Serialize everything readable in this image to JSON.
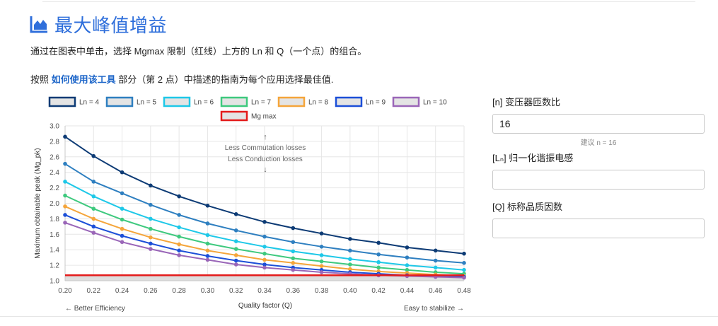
{
  "header": {
    "title": "最大峰值增益",
    "icon": "area-chart-icon",
    "accent_color": "#2f6fdb"
  },
  "description": {
    "line1": "通过在图表中单击，选择 Mgmax 限制（红线）上方的 Ln 和 Q（一个点）的组合。",
    "line2_pre": "按照",
    "line2_link": "如何使用该工具",
    "line2_post": "部分（第 2 点）中描述的指南为每个应用选择最佳值."
  },
  "form": {
    "n_label": "[n] 变压器匝数比",
    "n_value": "16",
    "n_hint": "建议 n = 16",
    "ln_label": "[Lₙ] 归一化谐振电感",
    "ln_value": "",
    "q_label": "[Q] 标称品质因数",
    "q_value": ""
  },
  "chart_data": {
    "type": "line",
    "x": [
      0.2,
      0.22,
      0.24,
      0.26,
      0.28,
      0.3,
      0.32,
      0.34,
      0.36,
      0.38,
      0.4,
      0.42,
      0.44,
      0.46,
      0.48
    ],
    "x_tick_labels": [
      "0.20",
      "0.22",
      "0.24",
      "0.26",
      "0.28",
      "0.30",
      "0.32",
      "0.34",
      "0.36",
      "0.38",
      "0.40",
      "0.42",
      "0.44",
      "0.46",
      "0.48"
    ],
    "y_tick_labels": [
      "1.0",
      "1.2",
      "1.4",
      "1.6",
      "1.8",
      "2.0",
      "2.2",
      "2.4",
      "2.6",
      "2.8",
      "3.0"
    ],
    "xlim": [
      0.2,
      0.48
    ],
    "ylim": [
      1.0,
      3.0
    ],
    "xlabel": "Quality factor (Q)",
    "ylabel": "Maximum obtainable peak (Mg_pk)",
    "x_left_note": "← Better Efficiency",
    "x_right_note": "Easy to stabilize →",
    "annotation_arrow_up": "↑",
    "annotation_line1": "Less Commutation losses",
    "annotation_line2": "Less Conduction losses",
    "annotation_arrow_down": "↓",
    "grid": true,
    "legend_position": "top",
    "series": [
      {
        "name": "Ln = 4",
        "color": "#0d3b75",
        "values": [
          2.86,
          2.61,
          2.4,
          2.23,
          2.09,
          1.97,
          1.86,
          1.76,
          1.68,
          1.61,
          1.54,
          1.49,
          1.43,
          1.39,
          1.35
        ]
      },
      {
        "name": "Ln = 5",
        "color": "#2e7fc0",
        "values": [
          2.51,
          2.28,
          2.13,
          1.98,
          1.85,
          1.74,
          1.65,
          1.57,
          1.5,
          1.44,
          1.39,
          1.34,
          1.3,
          1.26,
          1.23
        ]
      },
      {
        "name": "Ln = 6",
        "color": "#1ec8e8",
        "values": [
          2.28,
          2.09,
          1.93,
          1.8,
          1.69,
          1.59,
          1.51,
          1.44,
          1.38,
          1.33,
          1.28,
          1.24,
          1.2,
          1.17,
          1.14
        ]
      },
      {
        "name": "Ln = 7",
        "color": "#3ec97e",
        "values": [
          2.1,
          1.93,
          1.79,
          1.67,
          1.57,
          1.48,
          1.41,
          1.35,
          1.29,
          1.25,
          1.21,
          1.17,
          1.14,
          1.11,
          1.09
        ]
      },
      {
        "name": "Ln = 8",
        "color": "#f5a53a",
        "values": [
          1.96,
          1.8,
          1.67,
          1.56,
          1.47,
          1.39,
          1.33,
          1.27,
          1.23,
          1.19,
          1.15,
          1.12,
          1.1,
          1.08,
          1.06
        ]
      },
      {
        "name": "Ln = 9",
        "color": "#1c4fd8",
        "values": [
          1.85,
          1.7,
          1.58,
          1.48,
          1.39,
          1.32,
          1.26,
          1.21,
          1.17,
          1.14,
          1.11,
          1.09,
          1.07,
          1.06,
          1.05
        ]
      },
      {
        "name": "Ln = 10",
        "color": "#9a66b8",
        "values": [
          1.75,
          1.62,
          1.5,
          1.41,
          1.33,
          1.27,
          1.21,
          1.17,
          1.14,
          1.11,
          1.09,
          1.07,
          1.06,
          1.05,
          1.04
        ]
      },
      {
        "name": "Mg max",
        "color": "#e41b1b",
        "values": [
          1.07,
          1.07,
          1.07,
          1.07,
          1.07,
          1.07,
          1.07,
          1.07,
          1.07,
          1.07,
          1.07,
          1.07,
          1.07,
          1.07,
          1.07
        ]
      }
    ]
  }
}
